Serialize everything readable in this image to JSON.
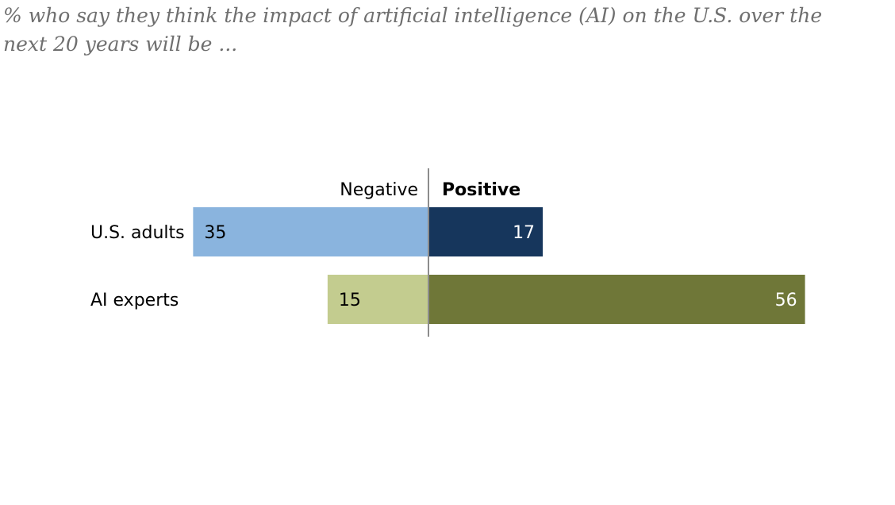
{
  "subtitle": "% who say they think the impact of artificial intelligence (AI) on the U.S. over the next 20 years will be ...",
  "chart_data": {
    "type": "bar",
    "orientation": "horizontal-diverging",
    "title": "",
    "subtitle": "% who say they think the impact of artificial intelligence (AI) on the U.S. over the next 20 years will be ...",
    "categories": [
      "U.S. adults",
      "AI experts"
    ],
    "series": [
      {
        "name": "Negative",
        "direction": "left",
        "values": [
          35,
          15
        ],
        "colors": [
          "#8ab4de",
          "#c3cc8f"
        ],
        "label_colors": [
          "#000000",
          "#000000"
        ]
      },
      {
        "name": "Positive",
        "direction": "right",
        "values": [
          17,
          56
        ],
        "colors": [
          "#16365c",
          "#6f7738"
        ],
        "label_colors": [
          "#ffffff",
          "#ffffff"
        ]
      }
    ],
    "xlabel": "",
    "ylabel": "",
    "legend": "column headers above bars",
    "grid": false
  }
}
